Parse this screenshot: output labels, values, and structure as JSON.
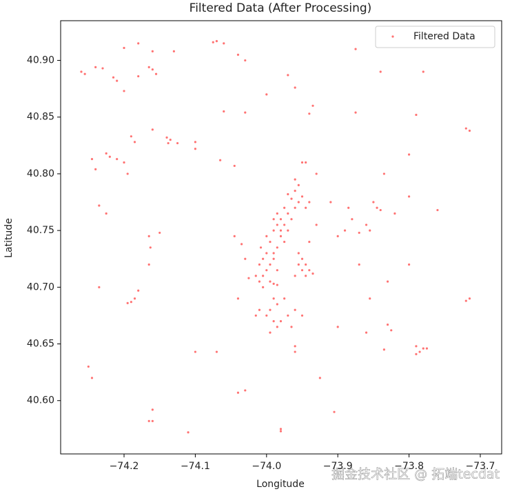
{
  "chart_data": {
    "type": "scatter",
    "title": "Filtered Data (After Processing)",
    "x_label": "Longitude",
    "y_label": "Latitude",
    "legend": "upper right",
    "grid": false,
    "xlim": [
      -74.289,
      -73.67
    ],
    "ylim": [
      40.553,
      40.935
    ],
    "xticks": [
      {
        "value": -74.2,
        "label": "−74.2"
      },
      {
        "value": -74.1,
        "label": "−74.1"
      },
      {
        "value": -74.0,
        "label": "−74.0"
      },
      {
        "value": -73.9,
        "label": "−73.9"
      },
      {
        "value": -73.8,
        "label": "−73.8"
      },
      {
        "value": -73.7,
        "label": "−73.7"
      }
    ],
    "yticks": [
      {
        "value": 40.6,
        "label": "40.60"
      },
      40.65,
      {
        "value": 40.7,
        "label": "40.70"
      },
      40.75,
      {
        "value": 40.8,
        "label": "40.80"
      },
      40.85,
      {
        "value": 40.9,
        "label": "40.90"
      }
    ],
    "watermark": "掘金技术社区 @ 拓端tecdat",
    "series": [
      {
        "name": "Filtered Data",
        "color": "red",
        "x": [
          -74.26,
          -74.255,
          -74.24,
          -74.23,
          -74.215,
          -74.21,
          -74.2,
          -74.18,
          -74.165,
          -74.16,
          -74.155,
          -74.2,
          -74.18,
          -74.16,
          -74.13,
          -74.075,
          -74.07,
          -74.06,
          -74.04,
          -74.03,
          -73.97,
          -73.875,
          -73.84,
          -73.78,
          -73.72,
          -73.715,
          -73.96,
          -74.0,
          -73.935,
          -73.94,
          -74.06,
          -74.03,
          -73.875,
          -73.79,
          -74.16,
          -74.14,
          -74.135,
          -74.138,
          -74.125,
          -74.185,
          -74.19,
          -74.225,
          -74.22,
          -74.21,
          -74.2,
          -74.245,
          -74.24,
          -74.195,
          -74.1,
          -74.1,
          -74.065,
          -74.045,
          -73.945,
          -73.93,
          -73.835,
          -73.8,
          -73.8,
          -73.82,
          -73.85,
          -73.845,
          -73.84,
          -73.76,
          -73.91,
          -73.885,
          -73.88,
          -73.86,
          -73.855,
          -73.87,
          -73.9,
          -73.89,
          -73.93,
          -73.94,
          -74.235,
          -74.225,
          -74.15,
          -74.165,
          -74.163,
          -74.165,
          -74.045,
          -74.035,
          -74.03,
          -74.025,
          -74.04,
          -73.87,
          -73.8,
          -73.83,
          -73.855,
          -73.86,
          -73.83,
          -73.825,
          -73.835,
          -73.79,
          -73.785,
          -73.78,
          -73.775,
          -73.79,
          -73.72,
          -73.715,
          -74.18,
          -74.185,
          -74.19,
          -74.195,
          -74.235,
          -74.25,
          -74.245,
          -74.165,
          -74.16,
          -74.16,
          -74.11,
          -74.07,
          -74.1,
          -74.04,
          -74.03,
          -73.98,
          -73.98,
          -73.925,
          -73.905,
          -73.96,
          -73.96,
          -73.9,
          -74.01,
          -74.005,
          -74.015,
          -74.0,
          -74.01,
          -74.005,
          -73.995,
          -74.0,
          -73.99,
          -74.008,
          -73.995,
          -73.985,
          -74.0,
          -73.99,
          -73.98,
          -73.985,
          -73.975,
          -73.98,
          -73.97,
          -73.965,
          -73.975,
          -73.96,
          -73.955,
          -73.965,
          -73.95,
          -73.96,
          -73.955,
          -73.945,
          -73.94,
          -73.99,
          -73.985,
          -74.005,
          -73.995,
          -73.98,
          -73.97,
          -73.975,
          -73.985,
          -73.99,
          -73.96,
          -73.95,
          -73.97,
          -73.99,
          -73.985,
          -73.995,
          -73.98,
          -73.97,
          -73.96,
          -73.975,
          -73.99,
          -73.995,
          -73.985,
          -73.95,
          -73.965,
          -74.0,
          -74.01,
          -74.015,
          -73.99,
          -73.985,
          -73.955,
          -73.95,
          -73.945,
          -73.94,
          -73.935,
          -73.95,
          -73.955,
          -73.945,
          -73.96
        ],
        "y": [
          40.89,
          40.888,
          40.894,
          40.893,
          40.885,
          40.882,
          40.873,
          40.886,
          40.894,
          40.892,
          40.888,
          40.911,
          40.915,
          40.908,
          40.908,
          40.916,
          40.917,
          40.915,
          40.905,
          40.9,
          40.887,
          40.91,
          40.89,
          40.89,
          40.84,
          40.838,
          40.876,
          40.87,
          40.86,
          40.853,
          40.855,
          40.854,
          40.854,
          40.852,
          40.839,
          40.832,
          40.83,
          40.827,
          40.827,
          40.828,
          40.833,
          40.818,
          40.815,
          40.813,
          40.81,
          40.813,
          40.804,
          40.8,
          40.828,
          40.822,
          40.812,
          40.807,
          40.81,
          40.8,
          40.8,
          40.817,
          40.78,
          40.765,
          40.775,
          40.77,
          40.768,
          40.768,
          40.775,
          40.77,
          40.76,
          40.755,
          40.75,
          40.748,
          40.745,
          40.75,
          40.755,
          40.74,
          40.772,
          40.765,
          40.748,
          40.745,
          40.735,
          40.72,
          40.745,
          40.738,
          40.725,
          40.708,
          40.69,
          40.72,
          40.72,
          40.705,
          40.69,
          40.66,
          40.667,
          40.662,
          40.645,
          40.648,
          40.643,
          40.646,
          40.646,
          40.641,
          40.688,
          40.69,
          40.697,
          40.69,
          40.687,
          40.686,
          40.7,
          40.63,
          40.62,
          40.582,
          40.582,
          40.592,
          40.572,
          40.643,
          40.643,
          40.607,
          40.609,
          40.575,
          40.573,
          40.62,
          40.59,
          40.643,
          40.648,
          40.665,
          40.705,
          40.71,
          40.71,
          40.715,
          40.72,
          40.725,
          40.72,
          40.73,
          40.73,
          40.735,
          40.74,
          40.735,
          40.745,
          40.75,
          40.745,
          40.755,
          40.755,
          40.76,
          40.765,
          40.76,
          40.77,
          40.77,
          40.775,
          40.778,
          40.78,
          40.785,
          40.79,
          40.77,
          40.775,
          40.725,
          40.715,
          40.7,
          40.705,
          40.75,
          40.75,
          40.74,
          40.765,
          40.76,
          40.795,
          40.81,
          40.782,
          40.69,
          40.685,
          40.68,
          40.67,
          40.675,
          40.68,
          40.69,
          40.67,
          40.66,
          40.665,
          40.675,
          40.665,
          40.675,
          40.68,
          40.675,
          40.703,
          40.702,
          40.72,
          40.715,
          40.71,
          40.715,
          40.712,
          40.725,
          40.73,
          40.72,
          40.71
        ]
      }
    ]
  }
}
